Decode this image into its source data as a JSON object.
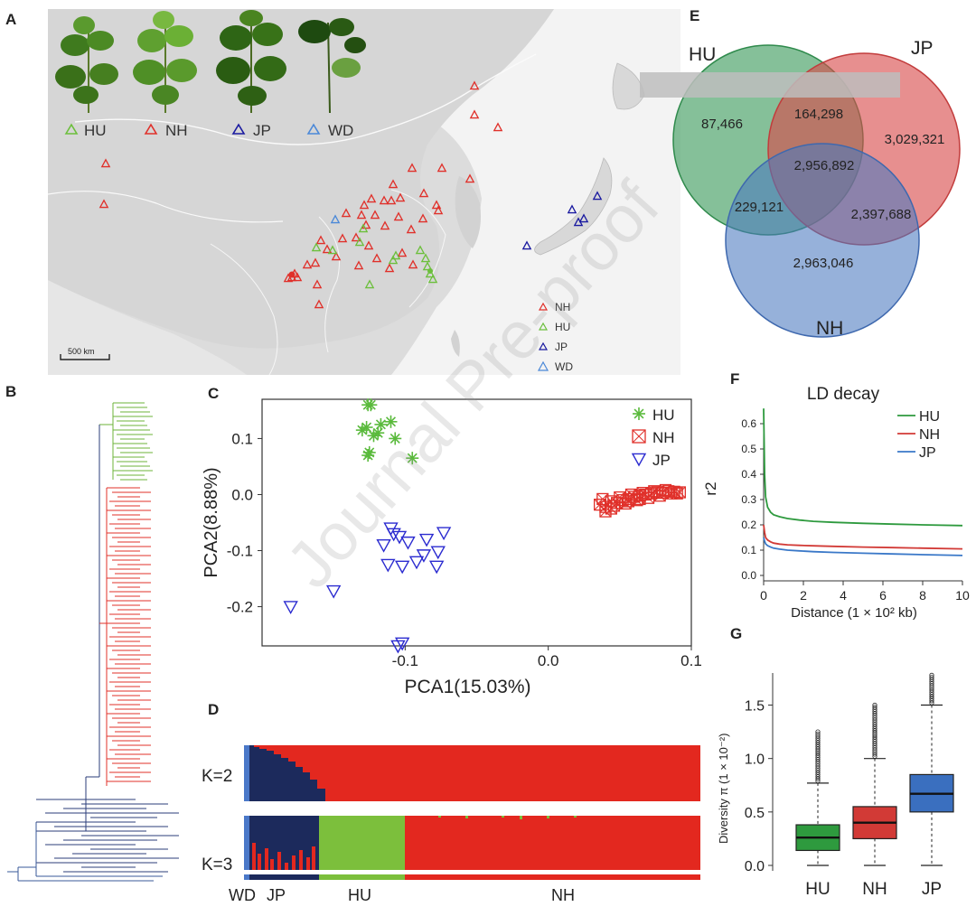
{
  "panels": {
    "a": "A",
    "b": "B",
    "c": "C",
    "d": "D",
    "e": "E",
    "f": "F",
    "g": "G"
  },
  "map": {
    "top_legend": [
      "HU",
      "NH",
      "JP",
      "WD"
    ],
    "side_legend": [
      "NH",
      "HU",
      "JP",
      "WD"
    ],
    "scale_bar": "500 km",
    "colors": {
      "HU": "#6cbf3c",
      "NH": "#e0302a",
      "JP": "#1a1aa0",
      "WD": "#4a88d8"
    }
  },
  "venn": {
    "labels": {
      "HU": "HU",
      "JP": "JP",
      "NH": "NH"
    },
    "counts": {
      "hu_only": "87,466",
      "hu_jp": "164,298",
      "jp_only": "3,029,321",
      "all": "2,956,892",
      "hu_nh": "229,121",
      "jp_nh": "2,397,688",
      "nh_only": "2,963,046"
    },
    "colors": {
      "HU": "#3a9a5a",
      "JP": "#d84a4a",
      "NH": "#4a78c0"
    }
  },
  "chart_data": [
    {
      "panel": "C",
      "type": "scatter",
      "xlabel": "PCA1(15.03%)",
      "ylabel": "PCA2(8.88%)",
      "xlim": [
        -0.2,
        0.1
      ],
      "ylim": [
        -0.27,
        0.17
      ],
      "xticks": [
        "-0.1",
        "0.0",
        "0.1"
      ],
      "yticks": [
        "0.1",
        "0.0",
        "-0.1",
        "-0.2"
      ],
      "legend": [
        "HU",
        "NH",
        "JP"
      ],
      "series": [
        {
          "name": "HU",
          "marker": "asterisk",
          "color": "#5aba3c",
          "x": [
            -0.124,
            -0.126,
            -0.127,
            -0.117,
            -0.11,
            -0.119,
            -0.107,
            -0.13,
            -0.122,
            -0.126,
            -0.125,
            -0.095
          ],
          "y": [
            0.16,
            0.16,
            0.12,
            0.125,
            0.13,
            0.11,
            0.1,
            0.115,
            0.105,
            0.07,
            0.075,
            0.065
          ]
        },
        {
          "name": "NH",
          "marker": "square-x",
          "color": "#e0302a",
          "x": [
            0.036,
            0.04,
            0.044,
            0.048,
            0.052,
            0.056,
            0.06,
            0.064,
            0.068,
            0.072,
            0.076,
            0.08,
            0.084,
            0.088,
            0.092,
            0.04,
            0.046,
            0.054,
            0.062,
            0.07,
            0.078,
            0.086,
            0.038,
            0.05,
            0.058,
            0.066,
            0.074,
            0.082,
            0.044,
            0.056,
            0.064,
            0.09
          ],
          "y": [
            -0.018,
            -0.022,
            -0.025,
            -0.015,
            -0.01,
            -0.008,
            -0.004,
            -0.002,
            0.0,
            0.002,
            0.004,
            0.003,
            0.006,
            0.005,
            0.004,
            -0.03,
            -0.02,
            -0.016,
            -0.01,
            -0.006,
            -0.002,
            0.002,
            -0.008,
            -0.005,
            0.0,
            0.003,
            0.006,
            0.008,
            -0.012,
            -0.012,
            -0.008,
            0.002
          ]
        },
        {
          "name": "JP",
          "marker": "triangle-down",
          "color": "#2b2bd0",
          "x": [
            -0.11,
            -0.108,
            -0.104,
            -0.115,
            -0.098,
            -0.085,
            -0.073,
            -0.087,
            -0.077,
            -0.092,
            -0.112,
            -0.102,
            -0.102,
            -0.105,
            -0.078,
            -0.18,
            -0.15
          ],
          "y": [
            -0.06,
            -0.07,
            -0.075,
            -0.09,
            -0.085,
            -0.08,
            -0.068,
            -0.108,
            -0.102,
            -0.12,
            -0.125,
            -0.128,
            -0.265,
            -0.27,
            -0.128,
            -0.2,
            -0.172
          ]
        }
      ]
    },
    {
      "panel": "F",
      "type": "line",
      "title": "LD decay",
      "xlabel": "Distance (1 × 10² kb)",
      "ylabel": "r2",
      "xlim": [
        0,
        10
      ],
      "ylim": [
        0,
        0.65
      ],
      "xticks": [
        "0",
        "2",
        "4",
        "6",
        "8",
        "10"
      ],
      "yticks": [
        "0.0",
        "0.1",
        "0.2",
        "0.3",
        "0.4",
        "0.5",
        "0.6"
      ],
      "legend": [
        "HU",
        "NH",
        "JP"
      ],
      "x": [
        0,
        0.05,
        0.1,
        0.2,
        0.35,
        0.5,
        0.8,
        1.2,
        1.8,
        2.5,
        3.5,
        5,
        6.5,
        8,
        10
      ],
      "series": [
        {
          "name": "HU",
          "color": "#2e9a3e",
          "values": [
            0.66,
            0.4,
            0.31,
            0.27,
            0.25,
            0.24,
            0.232,
            0.225,
            0.219,
            0.214,
            0.21,
            0.206,
            0.203,
            0.2,
            0.197
          ]
        },
        {
          "name": "NH",
          "color": "#d23a36",
          "values": [
            0.2,
            0.17,
            0.15,
            0.14,
            0.133,
            0.128,
            0.124,
            0.121,
            0.119,
            0.117,
            0.115,
            0.112,
            0.11,
            0.108,
            0.105
          ]
        },
        {
          "name": "JP",
          "color": "#3a78c8",
          "values": [
            0.15,
            0.135,
            0.125,
            0.118,
            0.112,
            0.108,
            0.104,
            0.1,
            0.097,
            0.094,
            0.091,
            0.088,
            0.085,
            0.082,
            0.079
          ]
        }
      ]
    },
    {
      "panel": "G",
      "type": "box",
      "ylabel": "Diversity π (1 × 10⁻²)",
      "ylim": [
        0,
        1.8
      ],
      "yticks": [
        "0.0",
        "0.5",
        "1.0",
        "1.5"
      ],
      "categories": [
        "HU",
        "NH",
        "JP"
      ],
      "series": [
        {
          "name": "HU",
          "color": "#2e9a3e",
          "min": 0.0,
          "q1": 0.14,
          "median": 0.26,
          "q3": 0.38,
          "max": 0.77,
          "outlier_max": 1.25
        },
        {
          "name": "NH",
          "color": "#d23a36",
          "min": 0.0,
          "q1": 0.25,
          "median": 0.4,
          "q3": 0.55,
          "max": 1.0,
          "outlier_max": 1.5
        },
        {
          "name": "JP",
          "color": "#3a6fbf",
          "min": 0.0,
          "q1": 0.5,
          "median": 0.67,
          "q3": 0.85,
          "max": 1.5,
          "outlier_max": 1.78
        }
      ]
    }
  ],
  "structure": {
    "rows": [
      "K=2",
      "K=3"
    ],
    "group_labels": [
      "WD",
      "JP",
      "HU",
      "NH"
    ],
    "colors": {
      "navy": "#1c2a5c",
      "red": "#e3281f",
      "green": "#7cbf3c",
      "blue": "#4a78c8"
    }
  },
  "watermark": "Journal Pre-proof"
}
